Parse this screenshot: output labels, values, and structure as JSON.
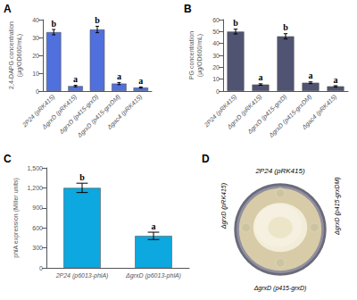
{
  "chart_data": [
    {
      "type": "bar",
      "panel_label": "A",
      "categories": [
        "2P24 (pRK415)",
        "ΔgrxD (pRK415)",
        "ΔgrxD (p415-grxD)",
        "ΔgrxD (p415-grxDM)",
        "Δgac4 (pRK415)"
      ],
      "values": [
        33,
        2.8,
        34.5,
        4.2,
        2.0
      ],
      "errors": [
        1.5,
        0.4,
        1.8,
        0.6,
        0.3
      ],
      "annotations": [
        "b",
        "a",
        "b",
        "a",
        "a"
      ],
      "ylabel": "2,4-DAPG concentration\n(μg/OD600/mL)",
      "ylim": [
        0,
        40
      ],
      "yticks": [
        0,
        10,
        20,
        30,
        40
      ],
      "grid": false
    },
    {
      "type": "bar",
      "panel_label": "B",
      "categories": [
        "2P24 (pRK415)",
        "ΔgrxD (pRK415)",
        "ΔgrxD (p415-grxD)",
        "ΔgrxD (p415-grxDM)",
        "Δgac4 (pRK415)"
      ],
      "values": [
        50,
        5.5,
        46,
        7,
        4.0
      ],
      "errors": [
        2.0,
        0.6,
        2.2,
        0.7,
        0.5
      ],
      "annotations": [
        "b",
        "a",
        "b",
        "a",
        "a"
      ],
      "ylabel": "PG concentration\n(μg/OD600/mL)",
      "ylim": [
        0,
        60
      ],
      "yticks": [
        0,
        10,
        20,
        30,
        40,
        50,
        60
      ],
      "grid": false
    },
    {
      "type": "bar",
      "panel_label": "C",
      "categories": [
        "2P24 (p6013-phlA)",
        "ΔgrxD (p6013-phlA)"
      ],
      "values": [
        1200,
        480
      ],
      "errors": [
        70,
        55
      ],
      "annotations": [
        "b",
        "a"
      ],
      "ylabel": "phlA expression (Miller units)",
      "ylim": [
        0,
        1500
      ],
      "yticks": [
        0,
        300,
        600,
        900,
        1200,
        1500
      ],
      "grid": false
    },
    {
      "type": "diagram",
      "panel_label": "D",
      "title": "2P24 (pRK415)",
      "annotations": [
        "ΔgrxD (pRK415)",
        "ΔgrxD (p415-grxDM)",
        "ΔgrxD (p415-grxD)"
      ]
    }
  ]
}
